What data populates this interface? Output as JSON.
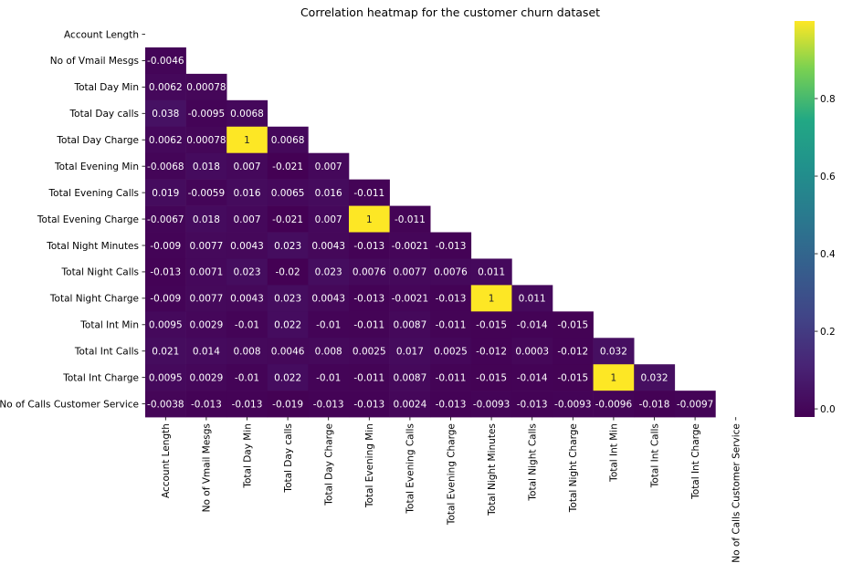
{
  "chart_data": {
    "type": "heatmap",
    "title": "Correlation heatmap for the customer churn dataset",
    "colormap": "viridis",
    "mask": "upper-triangle including diagonal",
    "color_range": [
      -0.021,
      1
    ],
    "colorbar_ticks": [
      "0.0",
      "0.2",
      "0.4",
      "0.6",
      "0.8"
    ],
    "labels": [
      "Account Length",
      "No of Vmail Mesgs",
      "Total Day Min",
      "Total Day calls",
      "Total Day Charge",
      "Total Evening Min",
      "Total Evening Calls",
      "Total Evening Charge",
      "Total Night Minutes",
      "Total Night Calls",
      "Total Night Charge",
      "Total Int Min",
      "Total Int Calls",
      "Total Int Charge",
      "No of Calls Customer Service"
    ],
    "lower_triangle_cells": [
      [],
      [
        "-0.0046"
      ],
      [
        "0.0062",
        "0.00078"
      ],
      [
        "0.038",
        "-0.0095",
        "0.0068"
      ],
      [
        "0.0062",
        "0.00078",
        "1",
        "0.0068"
      ],
      [
        "-0.0068",
        "0.018",
        "0.007",
        "-0.021",
        "0.007"
      ],
      [
        "0.019",
        "-0.0059",
        "0.016",
        "0.0065",
        "0.016",
        "-0.011"
      ],
      [
        "-0.0067",
        "0.018",
        "0.007",
        "-0.021",
        "0.007",
        "1",
        "-0.011"
      ],
      [
        "-0.009",
        "0.0077",
        "0.0043",
        "0.023",
        "0.0043",
        "-0.013",
        "-0.0021",
        "-0.013"
      ],
      [
        "-0.013",
        "0.0071",
        "0.023",
        "-0.02",
        "0.023",
        "0.0076",
        "0.0077",
        "0.0076",
        "0.011"
      ],
      [
        "-0.009",
        "0.0077",
        "0.0043",
        "0.023",
        "0.0043",
        "-0.013",
        "-0.0021",
        "-0.013",
        "1",
        "0.011"
      ],
      [
        "0.0095",
        "0.0029",
        "-0.01",
        "0.022",
        "-0.01",
        "-0.011",
        "0.0087",
        "-0.011",
        "-0.015",
        "-0.014",
        "-0.015"
      ],
      [
        "0.021",
        "0.014",
        "0.008",
        "0.0046",
        "0.008",
        "0.0025",
        "0.017",
        "0.0025",
        "-0.012",
        "0.0003",
        "-0.012",
        "0.032"
      ],
      [
        "0.0095",
        "0.0029",
        "-0.01",
        "0.022",
        "-0.01",
        "-0.011",
        "0.0087",
        "-0.011",
        "-0.015",
        "-0.014",
        "-0.015",
        "1",
        "0.032"
      ],
      [
        "-0.0038",
        "-0.013",
        "-0.013",
        "-0.019",
        "-0.013",
        "-0.013",
        "0.0024",
        "-0.013",
        "-0.0093",
        "-0.013",
        "-0.0093",
        "-0.0096",
        "-0.018",
        "-0.0097"
      ]
    ]
  }
}
